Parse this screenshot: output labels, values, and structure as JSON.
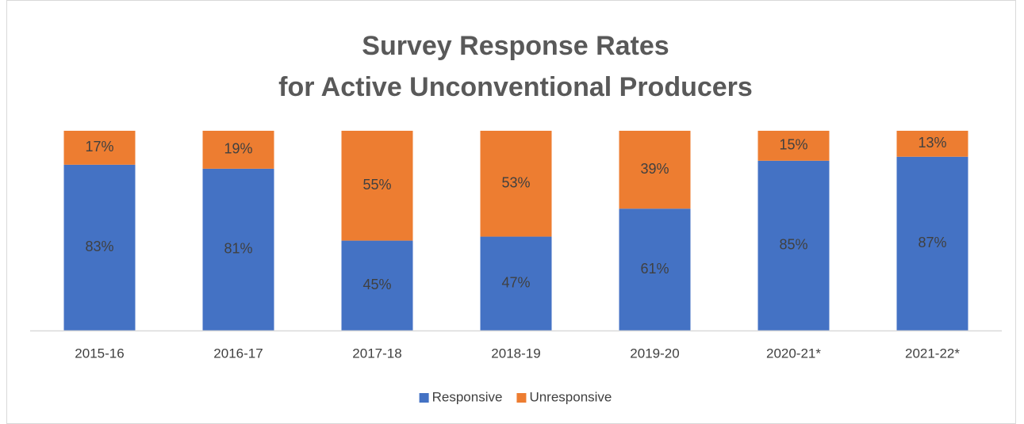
{
  "chart_data": {
    "type": "stacked_bar",
    "title": [
      "Survey Response Rates",
      "for Active Unconventional Producers"
    ],
    "categories": [
      "2015-16",
      "2016-17",
      "2017-18",
      "2018-19",
      "2019-20",
      "2020-21*",
      "2021-22*"
    ],
    "series": [
      {
        "name": "Responsive",
        "color": "#4472c4",
        "values": [
          83,
          81,
          45,
          47,
          61,
          85,
          87
        ],
        "value_labels": [
          "83%",
          "81%",
          "45%",
          "47%",
          "61%",
          "85%",
          "87%"
        ]
      },
      {
        "name": "Unresponsive",
        "color": "#ed7d31",
        "values": [
          17,
          19,
          55,
          53,
          39,
          15,
          13
        ],
        "value_labels": [
          "17%",
          "19%",
          "55%",
          "53%",
          "39%",
          "15%",
          "13%"
        ]
      }
    ],
    "ylim": [
      0,
      100
    ],
    "legend": "bottom"
  }
}
